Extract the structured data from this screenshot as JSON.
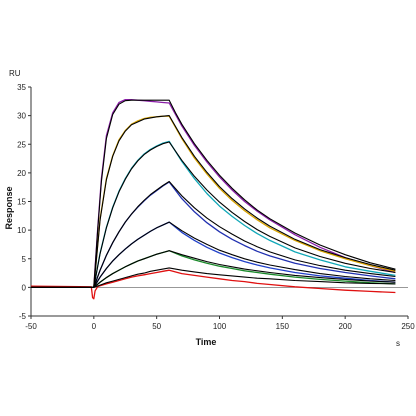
{
  "chart_data": {
    "type": "line",
    "xlabel": "Time",
    "ylabel": "Response",
    "x_unit": "s",
    "y_unit": "RU",
    "xlim": [
      -50,
      250
    ],
    "ylim": [
      -5,
      35
    ],
    "x_ticks": [
      -50,
      0,
      50,
      100,
      150,
      200,
      250
    ],
    "y_ticks": [
      -5,
      0,
      5,
      10,
      15,
      20,
      25,
      30,
      35
    ],
    "grid": false,
    "legend": "none",
    "association_start": 0,
    "dissociation_start": 60,
    "series": [
      {
        "color": "#8B1FA8",
        "x": [
          -50,
          -0.5,
          0,
          3,
          6,
          10,
          15,
          20,
          25,
          30,
          35,
          40,
          45,
          50,
          55,
          60,
          65,
          70,
          80,
          90,
          100,
          110,
          120,
          130,
          140,
          160,
          180,
          200,
          220,
          240
        ],
        "y": [
          0,
          0,
          0,
          10,
          19,
          26.5,
          30.5,
          32.3,
          32.8,
          32.8,
          32.7,
          32.6,
          32.5,
          32.4,
          32.3,
          32.2,
          30.2,
          28.2,
          24.8,
          21.9,
          19.3,
          17.0,
          15.0,
          13.3,
          11.8,
          9.2,
          7.0,
          5.2,
          3.8,
          2.6
        ]
      },
      {
        "color": "#D9A400",
        "x": [
          -50,
          -0.5,
          0,
          5,
          10,
          15,
          20,
          25,
          30,
          35,
          40,
          45,
          50,
          55,
          60,
          70,
          80,
          90,
          100,
          110,
          120,
          130,
          140,
          160,
          180,
          200,
          220,
          240
        ],
        "y": [
          0,
          0,
          0,
          12,
          19,
          23,
          25.8,
          27.4,
          28.5,
          29.1,
          29.5,
          29.7,
          29.8,
          29.9,
          29.9,
          26.0,
          22.6,
          19.8,
          17.3,
          15.2,
          13.4,
          11.8,
          10.4,
          8.2,
          6.4,
          5.0,
          3.8,
          2.8
        ]
      },
      {
        "color": "#11A8B8",
        "x": [
          -50,
          -0.5,
          0,
          5,
          10,
          15,
          20,
          25,
          30,
          35,
          40,
          45,
          50,
          55,
          60,
          70,
          80,
          90,
          100,
          110,
          120,
          130,
          140,
          160,
          180,
          200,
          220,
          240
        ],
        "y": [
          0,
          0,
          0,
          6,
          10.5,
          14,
          16.8,
          19,
          20.8,
          22.2,
          23.3,
          24.1,
          24.7,
          25.2,
          25.5,
          22.0,
          19.0,
          16.4,
          14.2,
          12.4,
          10.8,
          9.4,
          8.2,
          6.2,
          4.8,
          3.6,
          2.8,
          2.1
        ]
      },
      {
        "color": "#2030B0",
        "x": [
          -50,
          -0.5,
          0,
          5,
          10,
          15,
          20,
          25,
          30,
          35,
          40,
          45,
          50,
          55,
          60,
          70,
          80,
          90,
          100,
          110,
          120,
          130,
          140,
          160,
          180,
          200,
          220,
          240
        ],
        "y": [
          0,
          0,
          0,
          3,
          5.6,
          7.8,
          9.7,
          11.4,
          12.8,
          14.0,
          15.1,
          16.1,
          16.9,
          17.7,
          18.4,
          15.5,
          13.2,
          11.3,
          9.7,
          8.4,
          7.3,
          6.3,
          5.5,
          4.2,
          3.3,
          2.6,
          2.0,
          1.5
        ]
      },
      {
        "color": "#2040C8",
        "x": [
          -50,
          -0.5,
          0,
          5,
          10,
          15,
          20,
          25,
          30,
          35,
          40,
          45,
          50,
          55,
          60,
          70,
          80,
          90,
          100,
          110,
          120,
          130,
          140,
          160,
          180,
          200,
          220,
          240
        ],
        "y": [
          0,
          0,
          0,
          1.8,
          3.3,
          4.6,
          5.7,
          6.7,
          7.6,
          8.4,
          9.1,
          9.8,
          10.4,
          10.9,
          11.4,
          9.6,
          8.2,
          7.0,
          6.0,
          5.2,
          4.5,
          3.9,
          3.4,
          2.6,
          2.0,
          1.6,
          1.2,
          0.9
        ]
      },
      {
        "color": "#1A8A2A",
        "x": [
          -50,
          -0.5,
          0,
          5,
          10,
          15,
          20,
          25,
          30,
          35,
          40,
          45,
          50,
          55,
          60,
          70,
          80,
          90,
          100,
          110,
          120,
          130,
          140,
          160,
          180,
          200,
          220,
          240
        ],
        "y": [
          0,
          0,
          0,
          0.9,
          1.7,
          2.4,
          3.0,
          3.6,
          4.1,
          4.6,
          5.0,
          5.4,
          5.8,
          6.1,
          6.4,
          5.5,
          4.8,
          4.2,
          3.7,
          3.3,
          2.9,
          2.6,
          2.3,
          1.8,
          1.4,
          1.1,
          0.8,
          0.6
        ]
      },
      {
        "color": "#E01010",
        "x": [
          -50,
          -2,
          -1,
          0,
          1,
          3,
          5,
          10,
          15,
          20,
          25,
          30,
          35,
          40,
          45,
          50,
          55,
          60,
          70,
          80,
          90,
          100,
          110,
          120,
          130,
          140,
          160,
          180,
          200,
          220,
          240
        ],
        "y": [
          0.2,
          0.1,
          -1.8,
          -2.0,
          -0.6,
          0.1,
          0.3,
          0.6,
          0.9,
          1.2,
          1.5,
          1.8,
          2.0,
          2.2,
          2.4,
          2.6,
          2.8,
          3.0,
          2.4,
          2.1,
          1.8,
          1.5,
          1.2,
          1.0,
          0.7,
          0.5,
          0.1,
          -0.2,
          -0.5,
          -0.7,
          -0.9
        ]
      },
      {
        "color": "#000000",
        "x": [
          -50,
          -0.5,
          0,
          3,
          6,
          10,
          15,
          20,
          25,
          30,
          40,
          50,
          60,
          65,
          70,
          80,
          90,
          100,
          110,
          120,
          130,
          140,
          160,
          180,
          200,
          220,
          240
        ],
        "y": [
          0,
          0,
          0,
          9.8,
          18.5,
          26,
          30.2,
          32.0,
          32.6,
          32.7,
          32.7,
          32.7,
          32.7,
          30.5,
          28.5,
          25.1,
          22.2,
          19.6,
          17.3,
          15.3,
          13.5,
          12.0,
          9.5,
          7.4,
          5.7,
          4.3,
          3.2
        ]
      },
      {
        "color": "#000000",
        "x": [
          -50,
          -0.5,
          0,
          5,
          10,
          15,
          20,
          25,
          30,
          40,
          50,
          60,
          70,
          80,
          90,
          100,
          110,
          120,
          130,
          140,
          160,
          180,
          200,
          220,
          240
        ],
        "y": [
          0,
          0,
          0,
          11.8,
          18.8,
          22.9,
          25.6,
          27.3,
          28.4,
          29.4,
          29.8,
          30.0,
          26.2,
          22.9,
          20.1,
          17.6,
          15.5,
          13.7,
          12.1,
          10.7,
          8.4,
          6.6,
          5.2,
          4.0,
          3.0
        ]
      },
      {
        "color": "#000000",
        "x": [
          -50,
          -0.5,
          0,
          5,
          10,
          15,
          20,
          25,
          30,
          35,
          40,
          45,
          50,
          55,
          60,
          70,
          80,
          90,
          100,
          110,
          120,
          130,
          140,
          160,
          180,
          200,
          220,
          240
        ],
        "y": [
          0,
          0,
          0,
          5.9,
          10.4,
          13.9,
          16.7,
          18.9,
          20.7,
          22.1,
          23.2,
          24.0,
          24.6,
          25.1,
          25.4,
          22.2,
          19.4,
          17.0,
          14.9,
          13.1,
          11.5,
          10.1,
          8.9,
          6.9,
          5.4,
          4.2,
          3.3,
          2.6
        ]
      },
      {
        "color": "#000000",
        "x": [
          -50,
          -0.5,
          0,
          5,
          10,
          15,
          20,
          25,
          30,
          35,
          40,
          45,
          50,
          55,
          60,
          70,
          80,
          90,
          100,
          110,
          120,
          130,
          140,
          160,
          180,
          200,
          220,
          240
        ],
        "y": [
          0,
          0,
          0,
          3.0,
          5.6,
          7.8,
          9.7,
          11.4,
          12.8,
          14.1,
          15.2,
          16.2,
          17.0,
          17.8,
          18.5,
          16.0,
          13.9,
          12.1,
          10.6,
          9.3,
          8.1,
          7.1,
          6.2,
          4.8,
          3.8,
          3.0,
          2.4,
          1.9
        ]
      },
      {
        "color": "#000000",
        "x": [
          -50,
          -0.5,
          0,
          5,
          10,
          15,
          20,
          25,
          30,
          35,
          40,
          45,
          50,
          55,
          60,
          70,
          80,
          90,
          100,
          110,
          120,
          130,
          140,
          160,
          180,
          200,
          220,
          240
        ],
        "y": [
          0,
          0,
          0,
          1.8,
          3.3,
          4.6,
          5.7,
          6.7,
          7.6,
          8.4,
          9.1,
          9.8,
          10.4,
          10.9,
          11.4,
          9.9,
          8.6,
          7.5,
          6.5,
          5.7,
          5.0,
          4.4,
          3.9,
          3.1,
          2.4,
          1.9,
          1.5,
          1.2
        ]
      },
      {
        "color": "#000000",
        "x": [
          -50,
          -0.5,
          0,
          5,
          10,
          15,
          20,
          25,
          30,
          35,
          40,
          45,
          50,
          55,
          60,
          70,
          80,
          90,
          100,
          110,
          120,
          130,
          140,
          160,
          180,
          200,
          220,
          240
        ],
        "y": [
          0,
          0,
          0,
          0.9,
          1.7,
          2.4,
          3.0,
          3.6,
          4.1,
          4.6,
          5.0,
          5.4,
          5.8,
          6.1,
          6.4,
          5.7,
          5.1,
          4.5,
          4.0,
          3.6,
          3.2,
          2.9,
          2.6,
          2.1,
          1.7,
          1.4,
          1.1,
          0.9
        ]
      },
      {
        "color": "#000000",
        "x": [
          -50,
          -0.5,
          0,
          5,
          10,
          15,
          20,
          25,
          30,
          35,
          40,
          45,
          50,
          55,
          60,
          70,
          80,
          90,
          100,
          110,
          120,
          130,
          140,
          160,
          180,
          200,
          220,
          240
        ],
        "y": [
          0,
          0,
          0,
          0.4,
          0.8,
          1.1,
          1.4,
          1.7,
          2.0,
          2.3,
          2.5,
          2.8,
          3.0,
          3.2,
          3.4,
          3.0,
          2.7,
          2.4,
          2.2,
          2.0,
          1.8,
          1.6,
          1.5,
          1.2,
          1.0,
          0.8,
          0.7,
          0.6
        ]
      }
    ]
  }
}
